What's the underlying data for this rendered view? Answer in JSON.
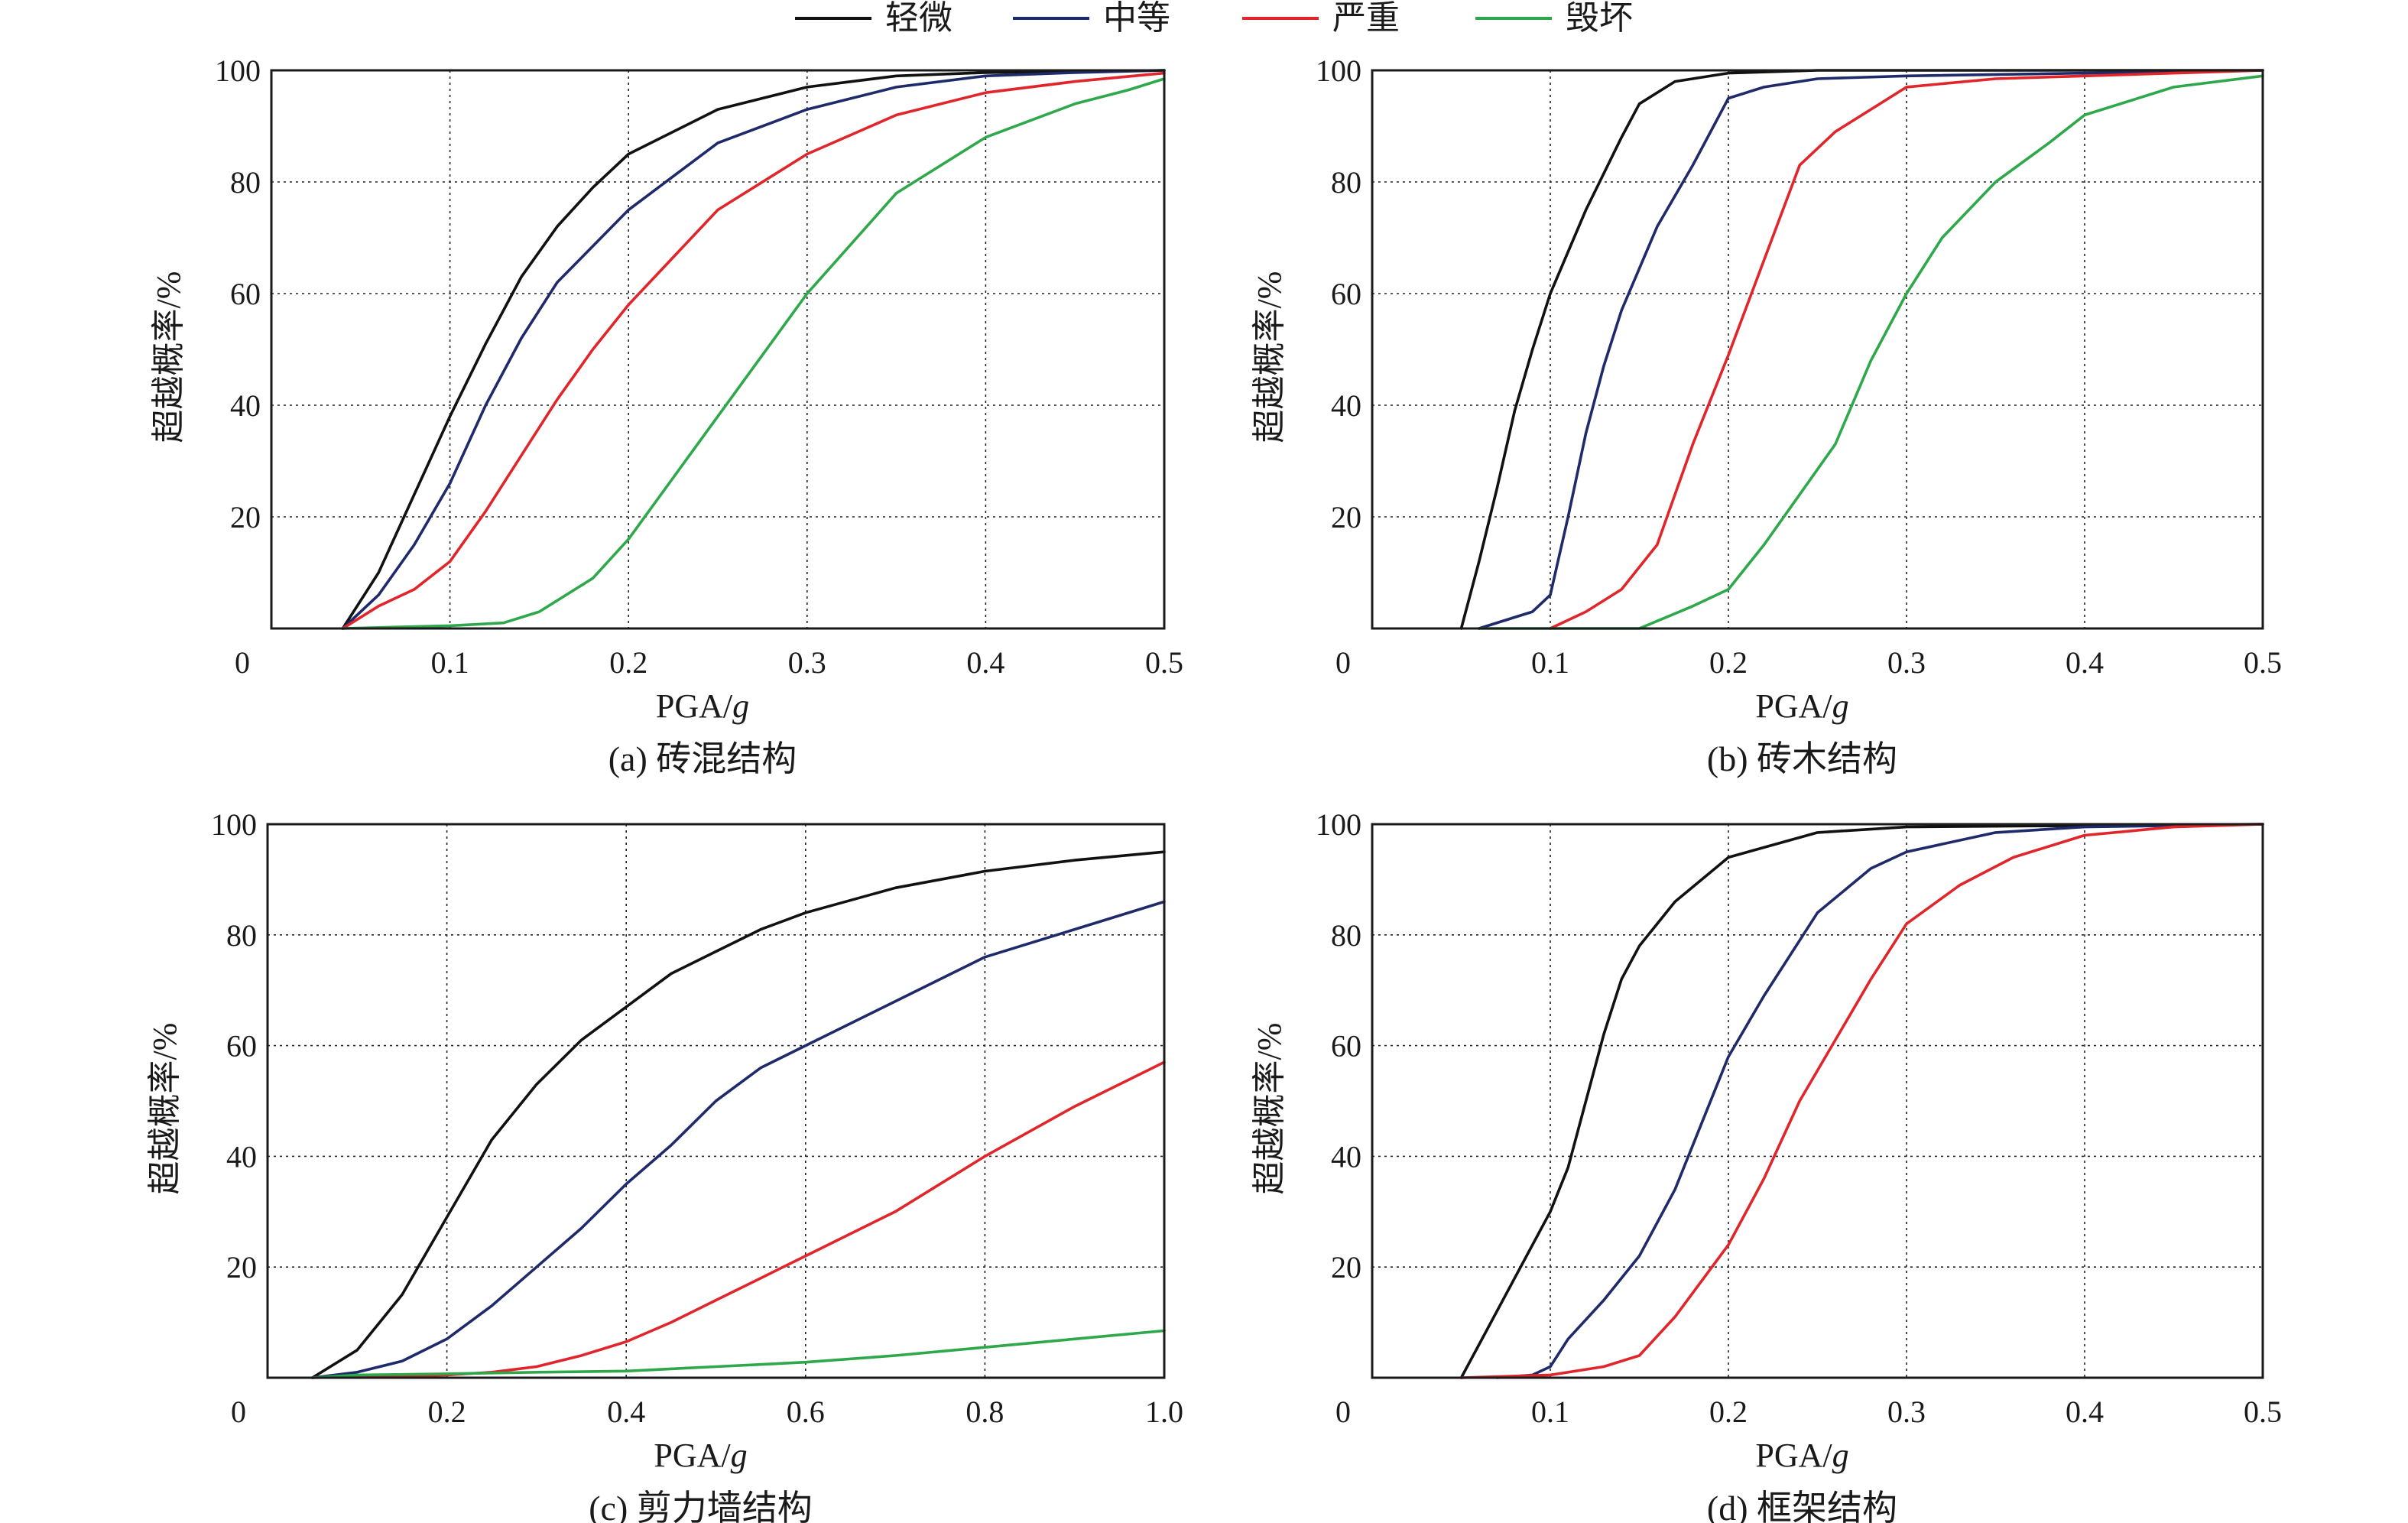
{
  "legend": {
    "items": [
      {
        "label": "轻微",
        "color": "#111111"
      },
      {
        "label": "中等",
        "color": "#1f2a6b"
      },
      {
        "label": "严重",
        "color": "#e0262b"
      },
      {
        "label": "毁坏",
        "color": "#2ea84a"
      }
    ]
  },
  "chart_data": [
    {
      "type": "line",
      "caption": "(a) 砖混结构",
      "xlabel_main": "PGA/",
      "xlabel_italic": "g",
      "ylabel": "超越概率/%",
      "origin_label": "0",
      "xlim": [
        0,
        0.5
      ],
      "ylim": [
        0,
        100
      ],
      "x_ticks": [
        0.1,
        0.2,
        0.3,
        0.4,
        0.5
      ],
      "x_tick_labels": [
        "0.1",
        "0.2",
        "0.3",
        "0.4",
        "0.5"
      ],
      "y_ticks": [
        20,
        40,
        60,
        80,
        100
      ],
      "y_tick_labels": [
        "20",
        "40",
        "60",
        "80",
        "100"
      ],
      "grid": true,
      "series": [
        {
          "name": "轻微",
          "color": "#111111",
          "points": [
            [
              0.04,
              0
            ],
            [
              0.06,
              10
            ],
            [
              0.08,
              24
            ],
            [
              0.1,
              38
            ],
            [
              0.12,
              51
            ],
            [
              0.14,
              63
            ],
            [
              0.16,
              72
            ],
            [
              0.18,
              79
            ],
            [
              0.2,
              85
            ],
            [
              0.25,
              93
            ],
            [
              0.3,
              97
            ],
            [
              0.35,
              99
            ],
            [
              0.4,
              99.6
            ],
            [
              0.5,
              100
            ]
          ]
        },
        {
          "name": "中等",
          "color": "#1f2a6b",
          "points": [
            [
              0.04,
              0
            ],
            [
              0.06,
              6
            ],
            [
              0.08,
              15
            ],
            [
              0.1,
              26
            ],
            [
              0.12,
              40
            ],
            [
              0.14,
              52
            ],
            [
              0.16,
              62
            ],
            [
              0.2,
              75
            ],
            [
              0.25,
              87
            ],
            [
              0.3,
              93
            ],
            [
              0.35,
              97
            ],
            [
              0.4,
              99
            ],
            [
              0.45,
              99.6
            ],
            [
              0.5,
              100
            ]
          ]
        },
        {
          "name": "严重",
          "color": "#e0262b",
          "points": [
            [
              0.04,
              0
            ],
            [
              0.06,
              4
            ],
            [
              0.08,
              7
            ],
            [
              0.1,
              12
            ],
            [
              0.12,
              21
            ],
            [
              0.14,
              31
            ],
            [
              0.16,
              41
            ],
            [
              0.18,
              50
            ],
            [
              0.2,
              58
            ],
            [
              0.25,
              75
            ],
            [
              0.3,
              85
            ],
            [
              0.35,
              92
            ],
            [
              0.4,
              96
            ],
            [
              0.45,
              98
            ],
            [
              0.5,
              99.5
            ]
          ]
        },
        {
          "name": "毁坏",
          "color": "#2ea84a",
          "points": [
            [
              0.04,
              0
            ],
            [
              0.1,
              0.5
            ],
            [
              0.13,
              1
            ],
            [
              0.15,
              3
            ],
            [
              0.18,
              9
            ],
            [
              0.2,
              16
            ],
            [
              0.25,
              38
            ],
            [
              0.3,
              60
            ],
            [
              0.35,
              78
            ],
            [
              0.4,
              88
            ],
            [
              0.45,
              94
            ],
            [
              0.48,
              96.5
            ],
            [
              0.5,
              98.5
            ]
          ]
        }
      ]
    },
    {
      "type": "line",
      "caption": "(b) 砖木结构",
      "xlabel_main": "PGA/",
      "xlabel_italic": "g",
      "ylabel": "超越概率/%",
      "origin_label": "0",
      "xlim": [
        0,
        0.5
      ],
      "ylim": [
        0,
        100
      ],
      "x_ticks": [
        0.1,
        0.2,
        0.3,
        0.4,
        0.5
      ],
      "x_tick_labels": [
        "0.1",
        "0.2",
        "0.3",
        "0.4",
        "0.5"
      ],
      "y_ticks": [
        20,
        40,
        60,
        80,
        100
      ],
      "y_tick_labels": [
        "20",
        "40",
        "60",
        "80",
        "100"
      ],
      "grid": true,
      "series": [
        {
          "name": "轻微",
          "color": "#111111",
          "points": [
            [
              0.05,
              0
            ],
            [
              0.06,
              12
            ],
            [
              0.07,
              25
            ],
            [
              0.08,
              39
            ],
            [
              0.09,
              50
            ],
            [
              0.1,
              60
            ],
            [
              0.12,
              75
            ],
            [
              0.14,
              88
            ],
            [
              0.15,
              94
            ],
            [
              0.17,
              98
            ],
            [
              0.2,
              99.5
            ],
            [
              0.25,
              100
            ],
            [
              0.5,
              100
            ]
          ]
        },
        {
          "name": "中等",
          "color": "#1f2a6b",
          "points": [
            [
              0.06,
              0
            ],
            [
              0.08,
              2
            ],
            [
              0.09,
              3
            ],
            [
              0.1,
              6
            ],
            [
              0.11,
              20
            ],
            [
              0.12,
              35
            ],
            [
              0.13,
              47
            ],
            [
              0.14,
              57
            ],
            [
              0.16,
              72
            ],
            [
              0.18,
              83
            ],
            [
              0.2,
              95
            ],
            [
              0.22,
              97
            ],
            [
              0.25,
              98.5
            ],
            [
              0.3,
              99
            ],
            [
              0.5,
              100
            ]
          ]
        },
        {
          "name": "严重",
          "color": "#e0262b",
          "points": [
            [
              0.1,
              0
            ],
            [
              0.12,
              3
            ],
            [
              0.14,
              7
            ],
            [
              0.16,
              15
            ],
            [
              0.18,
              33
            ],
            [
              0.2,
              49
            ],
            [
              0.22,
              66
            ],
            [
              0.24,
              83
            ],
            [
              0.26,
              89
            ],
            [
              0.28,
              93
            ],
            [
              0.3,
              97
            ],
            [
              0.35,
              98.5
            ],
            [
              0.4,
              99
            ],
            [
              0.5,
              100
            ]
          ]
        },
        {
          "name": "毁坏",
          "color": "#2ea84a",
          "points": [
            [
              0.06,
              0
            ],
            [
              0.15,
              0
            ],
            [
              0.18,
              4
            ],
            [
              0.2,
              7
            ],
            [
              0.22,
              15
            ],
            [
              0.24,
              24
            ],
            [
              0.26,
              33
            ],
            [
              0.28,
              48
            ],
            [
              0.3,
              60
            ],
            [
              0.32,
              70
            ],
            [
              0.35,
              80
            ],
            [
              0.38,
              87
            ],
            [
              0.4,
              92
            ],
            [
              0.45,
              97
            ],
            [
              0.5,
              99
            ]
          ]
        }
      ]
    },
    {
      "type": "line",
      "caption": "(c) 剪力墙结构",
      "xlabel_main": "PGA/",
      "xlabel_italic": "g",
      "ylabel": "超越概率/%",
      "origin_label": "0",
      "xlim": [
        0,
        1.0
      ],
      "ylim": [
        0,
        100
      ],
      "x_ticks": [
        0.2,
        0.4,
        0.6,
        0.8,
        1.0
      ],
      "x_tick_labels": [
        "0.2",
        "0.4",
        "0.6",
        "0.8",
        "1.0"
      ],
      "y_ticks": [
        20,
        40,
        60,
        80,
        100
      ],
      "y_tick_labels": [
        "20",
        "40",
        "60",
        "80",
        "100"
      ],
      "grid": true,
      "series": [
        {
          "name": "轻微",
          "color": "#111111",
          "points": [
            [
              0.05,
              0
            ],
            [
              0.1,
              5
            ],
            [
              0.15,
              15
            ],
            [
              0.2,
              29
            ],
            [
              0.25,
              43
            ],
            [
              0.3,
              53
            ],
            [
              0.35,
              61
            ],
            [
              0.4,
              67
            ],
            [
              0.45,
              73
            ],
            [
              0.5,
              77
            ],
            [
              0.55,
              81
            ],
            [
              0.6,
              84
            ],
            [
              0.7,
              88.5
            ],
            [
              0.8,
              91.5
            ],
            [
              0.9,
              93.5
            ],
            [
              1.0,
              95
            ]
          ]
        },
        {
          "name": "中等",
          "color": "#1f2a6b",
          "points": [
            [
              0.05,
              0
            ],
            [
              0.1,
              1
            ],
            [
              0.15,
              3
            ],
            [
              0.2,
              7
            ],
            [
              0.25,
              13
            ],
            [
              0.3,
              20
            ],
            [
              0.35,
              27
            ],
            [
              0.4,
              35
            ],
            [
              0.45,
              42
            ],
            [
              0.5,
              50
            ],
            [
              0.55,
              56
            ],
            [
              0.6,
              60
            ],
            [
              0.7,
              68
            ],
            [
              0.8,
              76
            ],
            [
              0.9,
              81
            ],
            [
              1.0,
              86
            ]
          ]
        },
        {
          "name": "严重",
          "color": "#e0262b",
          "points": [
            [
              0.05,
              0
            ],
            [
              0.2,
              0.5
            ],
            [
              0.25,
              1
            ],
            [
              0.3,
              2
            ],
            [
              0.35,
              4
            ],
            [
              0.4,
              6.5
            ],
            [
              0.45,
              10
            ],
            [
              0.5,
              14
            ],
            [
              0.55,
              18
            ],
            [
              0.6,
              22
            ],
            [
              0.7,
              30
            ],
            [
              0.8,
              40
            ],
            [
              0.9,
              49
            ],
            [
              1.0,
              57
            ]
          ]
        },
        {
          "name": "毁坏",
          "color": "#2ea84a",
          "points": [
            [
              0.05,
              0
            ],
            [
              0.1,
              0.5
            ],
            [
              0.2,
              0.7
            ],
            [
              0.3,
              1
            ],
            [
              0.4,
              1.2
            ],
            [
              0.5,
              2
            ],
            [
              0.6,
              2.8
            ],
            [
              0.7,
              4
            ],
            [
              0.8,
              5.5
            ],
            [
              0.9,
              7
            ],
            [
              1.0,
              8.5
            ]
          ]
        }
      ]
    },
    {
      "type": "line",
      "caption": "(d) 框架结构",
      "xlabel_main": "PGA/",
      "xlabel_italic": "g",
      "ylabel": "超越概率/%",
      "origin_label": "0",
      "xlim": [
        0,
        0.5
      ],
      "ylim": [
        0,
        100
      ],
      "x_ticks": [
        0.1,
        0.2,
        0.3,
        0.4,
        0.5
      ],
      "x_tick_labels": [
        "0.1",
        "0.2",
        "0.3",
        "0.4",
        "0.5"
      ],
      "y_ticks": [
        20,
        40,
        60,
        80,
        100
      ],
      "y_tick_labels": [
        "20",
        "40",
        "60",
        "80",
        "100"
      ],
      "grid": true,
      "series": [
        {
          "name": "轻微",
          "color": "#111111",
          "points": [
            [
              0.05,
              0
            ],
            [
              0.06,
              6
            ],
            [
              0.08,
              18
            ],
            [
              0.1,
              30
            ],
            [
              0.11,
              38
            ],
            [
              0.12,
              50
            ],
            [
              0.13,
              62
            ],
            [
              0.14,
              72
            ],
            [
              0.15,
              78
            ],
            [
              0.17,
              86
            ],
            [
              0.2,
              94
            ],
            [
              0.25,
              98.5
            ],
            [
              0.3,
              99.5
            ],
            [
              0.5,
              100
            ]
          ]
        },
        {
          "name": "中等",
          "color": "#1f2a6b",
          "points": [
            [
              0.07,
              0
            ],
            [
              0.09,
              0.5
            ],
            [
              0.1,
              2
            ],
            [
              0.11,
              7
            ],
            [
              0.13,
              14
            ],
            [
              0.15,
              22
            ],
            [
              0.17,
              34
            ],
            [
              0.18,
              42
            ],
            [
              0.2,
              58
            ],
            [
              0.22,
              69
            ],
            [
              0.25,
              84
            ],
            [
              0.28,
              92
            ],
            [
              0.3,
              95
            ],
            [
              0.35,
              98.5
            ],
            [
              0.4,
              99.5
            ],
            [
              0.5,
              100
            ]
          ]
        },
        {
          "name": "严重",
          "color": "#e0262b",
          "points": [
            [
              0.05,
              0
            ],
            [
              0.1,
              0.5
            ],
            [
              0.13,
              2
            ],
            [
              0.15,
              4
            ],
            [
              0.17,
              11
            ],
            [
              0.2,
              24
            ],
            [
              0.22,
              36
            ],
            [
              0.24,
              50
            ],
            [
              0.26,
              61
            ],
            [
              0.28,
              72
            ],
            [
              0.3,
              82
            ],
            [
              0.33,
              89
            ],
            [
              0.36,
              94
            ],
            [
              0.4,
              98
            ],
            [
              0.45,
              99.5
            ],
            [
              0.5,
              100
            ]
          ]
        }
      ]
    }
  ]
}
